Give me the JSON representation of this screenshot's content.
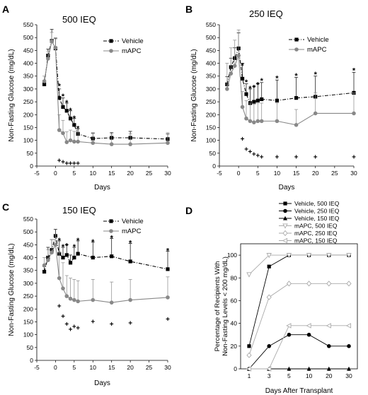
{
  "chart_data": [
    {
      "panel": "A",
      "type": "line",
      "title": "500 IEQ",
      "xlabel": "Days",
      "ylabel": "Non-Fasting Glucose (mg/dL)",
      "xlim": [
        -5,
        30
      ],
      "ylim": [
        0,
        550
      ],
      "xticks": [
        -5,
        0,
        5,
        10,
        15,
        20,
        25,
        30
      ],
      "yticks": [
        0,
        50,
        100,
        150,
        200,
        250,
        300,
        350,
        400,
        450,
        500,
        550
      ],
      "legend_position": "top-right",
      "series": [
        {
          "name": "Vehicle",
          "color": "#000000",
          "dash": "dashdot",
          "marker": "square",
          "x": [
            -3,
            -2,
            -1,
            0,
            1,
            2,
            3,
            4,
            5,
            6,
            10,
            15,
            20,
            30
          ],
          "values": [
            318,
            430,
            487,
            458,
            265,
            230,
            215,
            185,
            160,
            125,
            107,
            110,
            110,
            105
          ],
          "err": [
            15,
            25,
            45,
            40,
            35,
            35,
            30,
            30,
            25,
            20,
            20,
            20,
            25,
            20
          ]
        },
        {
          "name": "mAPC",
          "color": "#888888",
          "dash": "solid",
          "marker": "circle",
          "x": [
            -3,
            -2,
            -1,
            0,
            1,
            2,
            3,
            4,
            5,
            6,
            10,
            15,
            20,
            30
          ],
          "values": [
            330,
            418,
            485,
            460,
            140,
            128,
            93,
            100,
            95,
            95,
            90,
            85,
            85,
            90
          ],
          "err": [
            20,
            30,
            35,
            35,
            60,
            50,
            40,
            40,
            40,
            40,
            40,
            40,
            40,
            40
          ]
        }
      ],
      "annotations": [
        {
          "text": "*",
          "x": 1,
          "y": 315
        },
        {
          "text": "*",
          "x": 2,
          "y": 275
        },
        {
          "text": "*",
          "x": 3,
          "y": 250
        },
        {
          "text": "*",
          "x": 4,
          "y": 220
        },
        {
          "text": "*",
          "x": 5,
          "y": 190
        },
        {
          "text": "*",
          "x": 6,
          "y": 150
        },
        {
          "text": "+",
          "x": 1,
          "y": 20
        },
        {
          "text": "+",
          "x": 2,
          "y": 15
        },
        {
          "text": "+",
          "x": 3,
          "y": 10
        },
        {
          "text": "+",
          "x": 4,
          "y": 10
        },
        {
          "text": "+",
          "x": 5,
          "y": 10
        },
        {
          "text": "+",
          "x": 6,
          "y": 10
        }
      ]
    },
    {
      "panel": "B",
      "type": "line",
      "title": "250 IEQ",
      "xlabel": "Days",
      "ylabel": "Non-Fasting Glucose (mg/dL)",
      "xlim": [
        -5,
        30
      ],
      "ylim": [
        0,
        550
      ],
      "xticks": [
        -5,
        0,
        5,
        10,
        15,
        20,
        25,
        30
      ],
      "yticks": [
        0,
        50,
        100,
        150,
        200,
        250,
        300,
        350,
        400,
        450,
        500,
        550
      ],
      "legend_position": "top-right",
      "series": [
        {
          "name": "Vehicle",
          "color": "#000000",
          "dash": "dashdot",
          "marker": "square",
          "x": [
            -3,
            -2,
            -1,
            0,
            1,
            2,
            3,
            4,
            5,
            6,
            10,
            15,
            20,
            30
          ],
          "values": [
            318,
            385,
            420,
            458,
            340,
            280,
            245,
            250,
            255,
            260,
            255,
            265,
            270,
            285
          ],
          "err": [
            30,
            35,
            40,
            60,
            60,
            40,
            55,
            60,
            65,
            65,
            80,
            80,
            80,
            80
          ]
        },
        {
          "name": "mAPC",
          "color": "#888888",
          "dash": "solid",
          "marker": "circle",
          "x": [
            -3,
            -2,
            -1,
            0,
            1,
            2,
            3,
            4,
            5,
            6,
            10,
            15,
            20,
            30
          ],
          "values": [
            300,
            360,
            390,
            430,
            230,
            185,
            175,
            170,
            175,
            175,
            175,
            160,
            205,
            205
          ],
          "err": [
            100,
            100,
            100,
            100,
            60,
            70,
            70,
            70,
            70,
            70,
            70,
            60,
            80,
            80
          ]
        }
      ],
      "annotations": [
        {
          "text": "*",
          "x": 1,
          "y": 395
        },
        {
          "text": "*",
          "x": 2,
          "y": 330
        },
        {
          "text": "*",
          "x": 3,
          "y": 305
        },
        {
          "text": "*",
          "x": 4,
          "y": 310
        },
        {
          "text": "*",
          "x": 5,
          "y": 320
        },
        {
          "text": "*",
          "x": 6,
          "y": 335
        },
        {
          "text": "*",
          "x": 10,
          "y": 345
        },
        {
          "text": "*",
          "x": 15,
          "y": 355
        },
        {
          "text": "*",
          "x": 20,
          "y": 360
        },
        {
          "text": "*",
          "x": 30,
          "y": 375
        },
        {
          "text": "+",
          "x": 1,
          "y": 105
        },
        {
          "text": "+",
          "x": 2,
          "y": 65
        },
        {
          "text": "+",
          "x": 3,
          "y": 55
        },
        {
          "text": "+",
          "x": 4,
          "y": 45
        },
        {
          "text": "+",
          "x": 5,
          "y": 40
        },
        {
          "text": "+",
          "x": 6,
          "y": 35
        },
        {
          "text": "+",
          "x": 10,
          "y": 35
        },
        {
          "text": "+",
          "x": 15,
          "y": 35
        },
        {
          "text": "+",
          "x": 20,
          "y": 35
        },
        {
          "text": "+",
          "x": 30,
          "y": 35
        }
      ]
    },
    {
      "panel": "C",
      "type": "line",
      "title": "150 IEQ",
      "xlabel": "Days",
      "ylabel": "Non-Fasting Glucose (mg/dL)",
      "xlim": [
        -5,
        30
      ],
      "ylim": [
        0,
        550
      ],
      "xticks": [
        -5,
        0,
        5,
        10,
        15,
        20,
        25,
        30
      ],
      "yticks": [
        0,
        50,
        100,
        150,
        200,
        250,
        300,
        350,
        400,
        450,
        500,
        550
      ],
      "legend_position": "top-right",
      "series": [
        {
          "name": "Vehicle",
          "color": "#000000",
          "dash": "dashdot",
          "marker": "square",
          "x": [
            -3,
            -2,
            -1,
            0,
            1,
            2,
            3,
            4,
            5,
            6,
            10,
            15,
            20,
            30
          ],
          "values": [
            345,
            400,
            430,
            485,
            415,
            400,
            410,
            380,
            400,
            415,
            400,
            405,
            385,
            355
          ],
          "err": [
            20,
            40,
            40,
            25,
            50,
            40,
            40,
            30,
            40,
            50,
            60,
            70,
            70,
            70
          ]
        },
        {
          "name": "mAPC",
          "color": "#888888",
          "dash": "solid",
          "marker": "circle",
          "x": [
            -3,
            -2,
            -1,
            0,
            1,
            2,
            3,
            4,
            5,
            6,
            10,
            15,
            20,
            30
          ],
          "values": [
            370,
            390,
            420,
            450,
            320,
            280,
            250,
            240,
            235,
            230,
            235,
            225,
            235,
            245
          ],
          "err": [
            30,
            40,
            50,
            40,
            100,
            100,
            80,
            80,
            80,
            80,
            80,
            80,
            80,
            80
          ]
        }
      ],
      "annotations": [
        {
          "text": "*",
          "x": 1,
          "y": 470
        },
        {
          "text": "*",
          "x": 2,
          "y": 445
        },
        {
          "text": "*",
          "x": 3,
          "y": 450
        },
        {
          "text": "*",
          "x": 5,
          "y": 445
        },
        {
          "text": "*",
          "x": 6,
          "y": 470
        },
        {
          "text": "*",
          "x": 10,
          "y": 465
        },
        {
          "text": "*",
          "x": 15,
          "y": 480
        },
        {
          "text": "*",
          "x": 20,
          "y": 460
        },
        {
          "text": "*",
          "x": 30,
          "y": 430
        },
        {
          "text": "+",
          "x": 1,
          "y": 210
        },
        {
          "text": "+",
          "x": 2,
          "y": 170
        },
        {
          "text": "+",
          "x": 3,
          "y": 140
        },
        {
          "text": "+",
          "x": 4,
          "y": 120
        },
        {
          "text": "+",
          "x": 5,
          "y": 130
        },
        {
          "text": "+",
          "x": 6,
          "y": 125
        },
        {
          "text": "+",
          "x": 10,
          "y": 150
        },
        {
          "text": "+",
          "x": 15,
          "y": 140
        },
        {
          "text": "+",
          "x": 20,
          "y": 145
        },
        {
          "text": "+",
          "x": 30,
          "y": 160
        }
      ]
    },
    {
      "panel": "D",
      "type": "line",
      "title": "",
      "xlabel": "Days After Transplant",
      "ylabel": "Percentage of Recipients With Non-Fasting Levels < 200 mg/dL)",
      "ylabel_lines": [
        "Percentage of Recipients With",
        "Non-Fasting Levels < 200 mg/dL)"
      ],
      "x_categorical": true,
      "categories": [
        "1",
        "3",
        "5",
        "10",
        "20",
        "30"
      ],
      "ylim": [
        0,
        110
      ],
      "yticks": [
        0,
        20,
        40,
        60,
        80,
        100
      ],
      "legend_position": "top",
      "series": [
        {
          "name": "Vehicle, 500 IEQ",
          "color": "#000000",
          "marker": "square-filled",
          "values": [
            20,
            90,
            100,
            100,
            100,
            100
          ]
        },
        {
          "name": "Vehicle, 250 IEQ",
          "color": "#000000",
          "marker": "circle-filled",
          "values": [
            0,
            20,
            30,
            30,
            20,
            20
          ]
        },
        {
          "name": "Vehicle, 150 IEQ",
          "color": "#000000",
          "marker": "triangle-up-filled",
          "values": [
            0,
            0,
            0,
            0,
            0,
            0
          ]
        },
        {
          "name": "mAPC, 500 IEQ",
          "color": "#aaaaaa",
          "marker": "triangle-down-open",
          "values": [
            83,
            100,
            100,
            100,
            100,
            100
          ]
        },
        {
          "name": "mAPC, 250 IEQ",
          "color": "#aaaaaa",
          "marker": "diamond-open",
          "values": [
            12,
            63,
            75,
            75,
            75,
            75
          ]
        },
        {
          "name": "mAPC, 150 IEQ",
          "color": "#aaaaaa",
          "marker": "triangle-left-open",
          "values": [
            0,
            0,
            38,
            38,
            38,
            38
          ]
        }
      ]
    }
  ]
}
